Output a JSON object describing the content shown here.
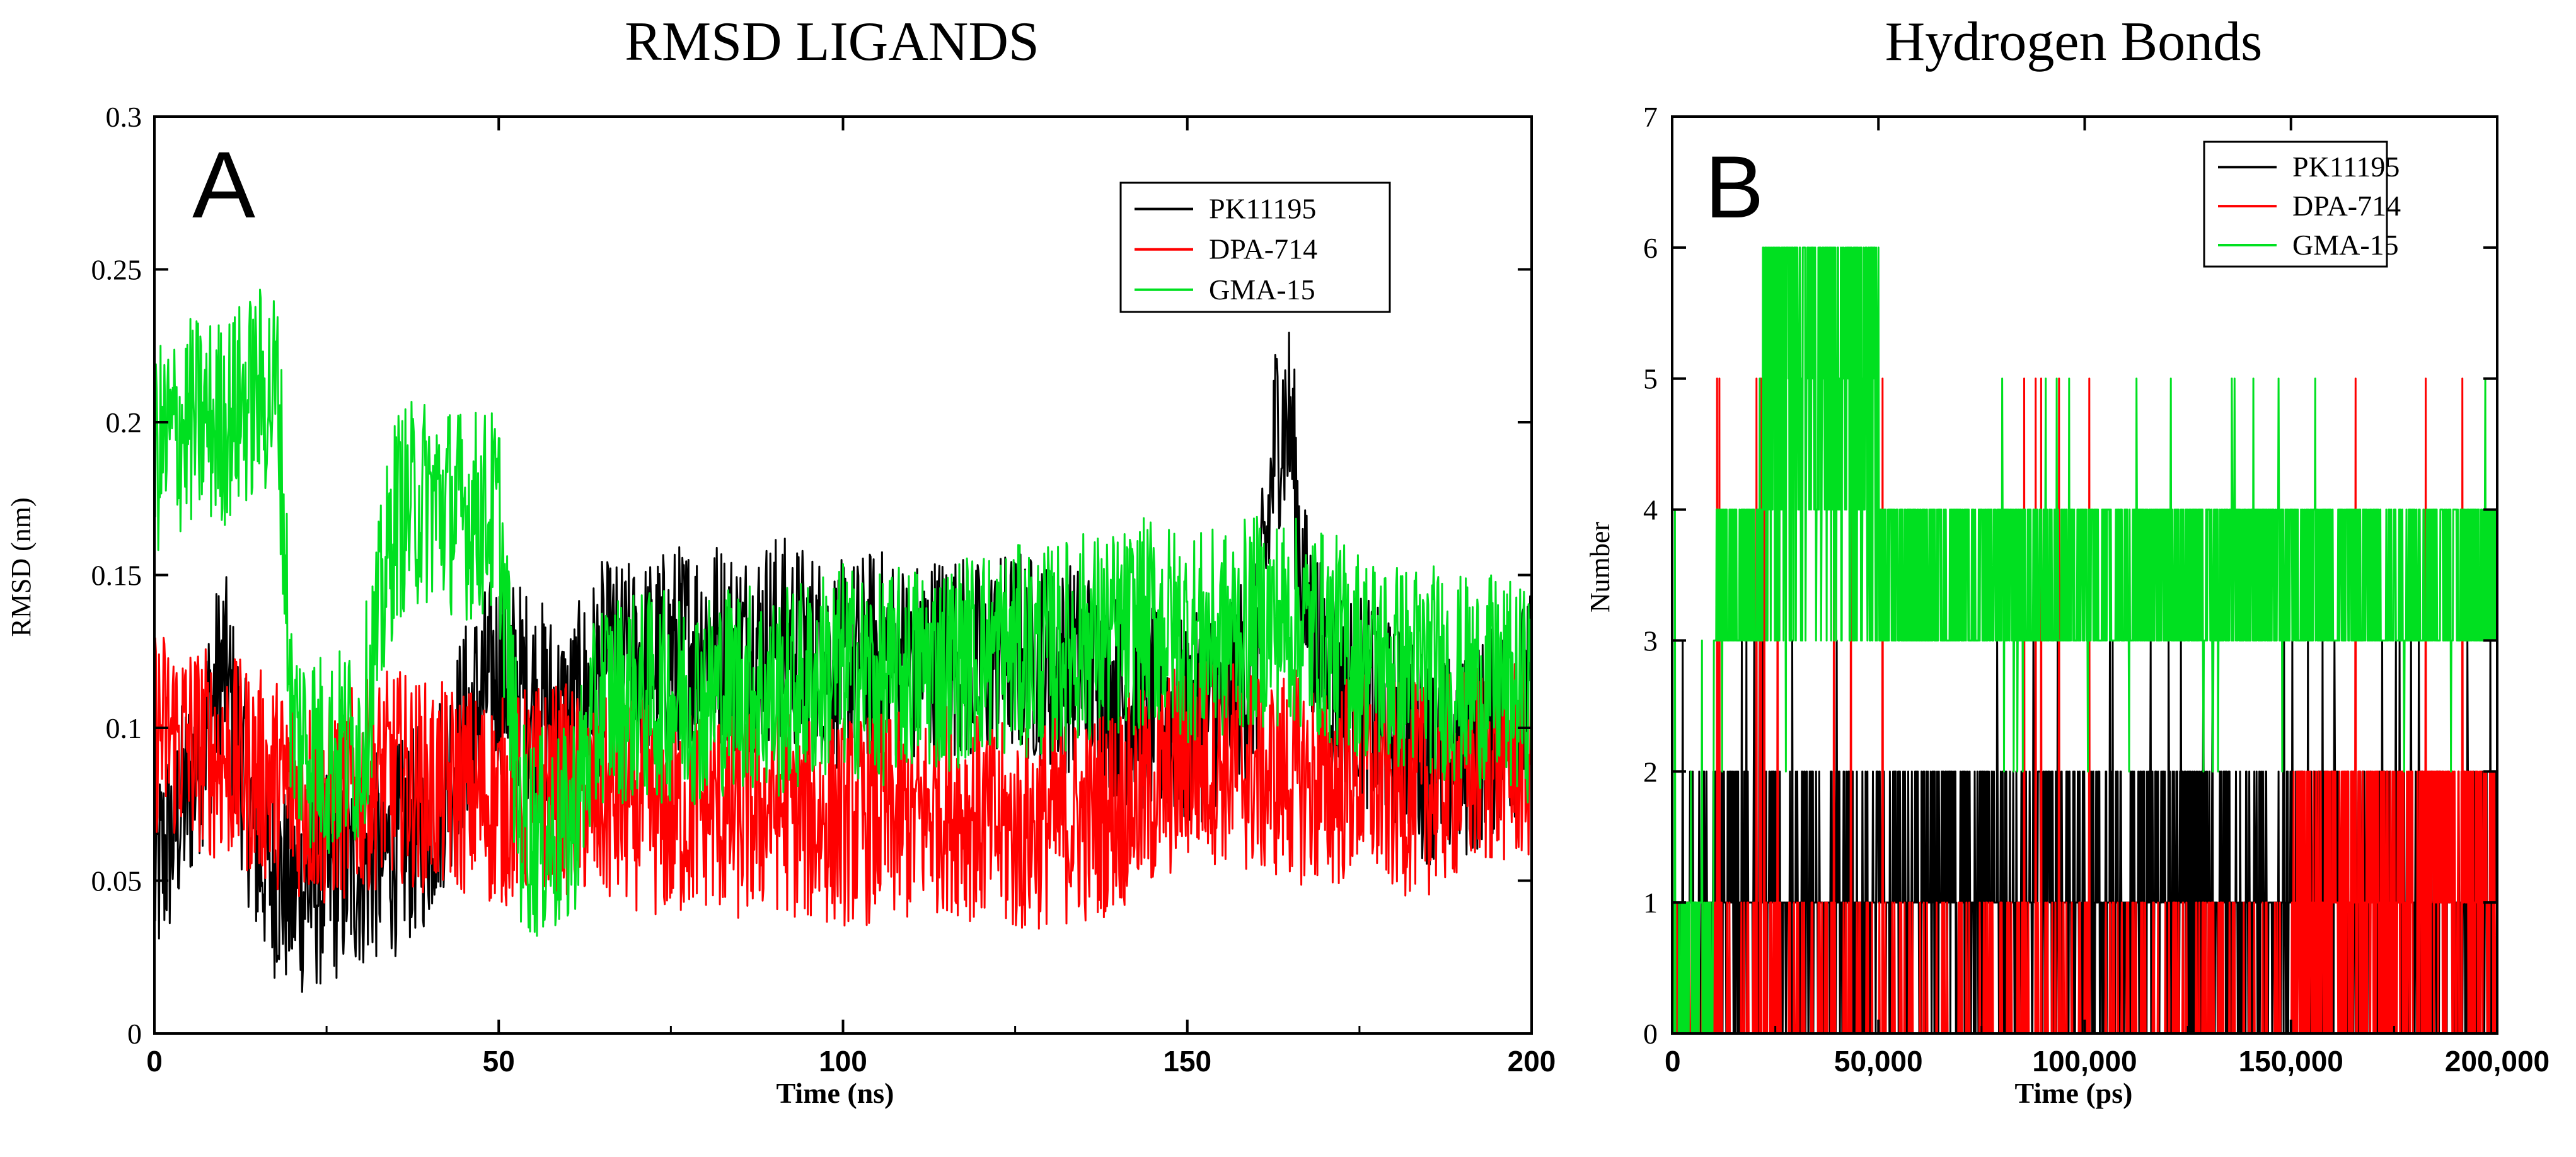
{
  "figure": {
    "colors": {
      "PK11195": "#000000",
      "DPA-714": "#ff0000",
      "GMA-15": "#00e020",
      "background": "#ffffff"
    }
  },
  "chart_data": [
    {
      "type": "line",
      "panel_label": "A",
      "title": "RMSD LIGANDS",
      "xlabel": "Time (ns)",
      "ylabel": "RMSD (nm)",
      "xlim": [
        0,
        200
      ],
      "ylim": [
        0,
        0.3
      ],
      "x_ticks": [
        0,
        50,
        100,
        150,
        200
      ],
      "x_tick_labels": [
        "0",
        "50",
        "100",
        "150",
        "200"
      ],
      "y_ticks": [
        0,
        0.05,
        0.1,
        0.15,
        0.2,
        0.25,
        0.3
      ],
      "y_tick_labels": [
        "0",
        "0.05",
        "0.1",
        "0.15",
        "0.2",
        "0.25",
        "0.3"
      ],
      "legend": {
        "position": "top-right",
        "entries": [
          "PK11195",
          "DPA-714",
          "GMA-15"
        ]
      },
      "series": [
        {
          "name": "PK11195",
          "color": "#000000",
          "x": [
            0,
            5,
            10,
            15,
            20,
            25,
            30,
            35,
            40,
            45,
            50,
            55,
            60,
            65,
            70,
            75,
            80,
            85,
            90,
            95,
            100,
            105,
            110,
            115,
            120,
            125,
            130,
            135,
            140,
            145,
            150,
            155,
            160,
            163,
            165,
            167,
            170,
            175,
            180,
            185,
            190,
            195,
            200
          ],
          "y": [
            0.05,
            0.08,
            0.12,
            0.06,
            0.045,
            0.05,
            0.055,
            0.06,
            0.07,
            0.1,
            0.12,
            0.11,
            0.1,
            0.12,
            0.12,
            0.125,
            0.13,
            0.125,
            0.13,
            0.125,
            0.12,
            0.125,
            0.12,
            0.125,
            0.12,
            0.125,
            0.12,
            0.12,
            0.11,
            0.105,
            0.1,
            0.11,
            0.12,
            0.2,
            0.2,
            0.14,
            0.12,
            0.11,
            0.1,
            0.09,
            0.09,
            0.1,
            0.11
          ]
        },
        {
          "name": "DPA-714",
          "color": "#ff0000",
          "x": [
            0,
            5,
            10,
            15,
            20,
            25,
            30,
            35,
            40,
            45,
            50,
            55,
            60,
            65,
            70,
            75,
            80,
            85,
            90,
            95,
            100,
            105,
            110,
            115,
            120,
            125,
            130,
            135,
            140,
            145,
            150,
            155,
            160,
            165,
            170,
            175,
            180,
            185,
            190,
            195,
            200
          ],
          "y": [
            0.1,
            0.095,
            0.09,
            0.085,
            0.08,
            0.075,
            0.08,
            0.085,
            0.08,
            0.08,
            0.075,
            0.08,
            0.08,
            0.075,
            0.075,
            0.07,
            0.075,
            0.07,
            0.075,
            0.07,
            0.07,
            0.07,
            0.07,
            0.075,
            0.07,
            0.065,
            0.07,
            0.07,
            0.075,
            0.08,
            0.09,
            0.09,
            0.085,
            0.085,
            0.08,
            0.085,
            0.08,
            0.08,
            0.085,
            0.09,
            0.09
          ]
        },
        {
          "name": "GMA-15",
          "color": "#00e020",
          "x": [
            0,
            5,
            10,
            15,
            18,
            20,
            25,
            30,
            35,
            40,
            45,
            50,
            53,
            55,
            60,
            65,
            70,
            75,
            80,
            85,
            90,
            95,
            100,
            105,
            110,
            115,
            120,
            125,
            130,
            135,
            140,
            145,
            150,
            155,
            160,
            165,
            170,
            175,
            180,
            185,
            190,
            195,
            200
          ],
          "y": [
            0.19,
            0.2,
            0.2,
            0.21,
            0.21,
            0.1,
            0.09,
            0.095,
            0.17,
            0.175,
            0.17,
            0.17,
            0.07,
            0.065,
            0.065,
            0.11,
            0.11,
            0.11,
            0.11,
            0.115,
            0.11,
            0.115,
            0.12,
            0.115,
            0.12,
            0.12,
            0.125,
            0.125,
            0.125,
            0.13,
            0.13,
            0.135,
            0.13,
            0.13,
            0.135,
            0.135,
            0.13,
            0.125,
            0.12,
            0.12,
            0.115,
            0.115,
            0.11
          ]
        }
      ]
    },
    {
      "type": "line",
      "panel_label": "B",
      "title": "Hydrogen Bonds",
      "xlabel": "Time (ps)",
      "ylabel": "Number",
      "xlim": [
        0,
        200000
      ],
      "ylim": [
        0,
        7
      ],
      "x_ticks": [
        0,
        50000,
        100000,
        150000,
        200000
      ],
      "x_tick_labels": [
        "0",
        "50,000",
        "100,000",
        "150,000",
        "200,000"
      ],
      "y_ticks": [
        0,
        1,
        2,
        3,
        4,
        5,
        6,
        7
      ],
      "y_tick_labels": [
        "0",
        "1",
        "2",
        "3",
        "4",
        "5",
        "6",
        "7"
      ],
      "legend": {
        "position": "top-right",
        "entries": [
          "PK11195",
          "DPA-714",
          "GMA-15"
        ]
      },
      "series": [
        {
          "name": "PK11195",
          "color": "#000000",
          "x": [
            0,
            10000,
            20000,
            30000,
            40000,
            50000,
            60000,
            70000,
            80000,
            90000,
            100000,
            110000,
            120000,
            130000,
            140000,
            150000,
            160000,
            170000,
            180000,
            190000,
            200000
          ],
          "y": [
            1,
            1,
            1,
            1,
            1,
            1,
            1,
            1,
            1,
            1,
            1,
            1,
            1,
            1,
            0,
            1,
            1,
            1,
            1,
            1,
            1
          ]
        },
        {
          "name": "DPA-714",
          "color": "#ff0000",
          "x": [
            0,
            10000,
            20000,
            30000,
            40000,
            50000,
            60000,
            70000,
            80000,
            90000,
            100000,
            110000,
            120000,
            130000,
            140000,
            150000,
            160000,
            170000,
            180000,
            190000,
            200000
          ],
          "y": [
            0,
            0,
            0,
            0,
            0,
            0,
            0,
            0,
            0,
            0,
            0,
            0,
            0,
            0,
            0,
            0,
            2,
            2,
            2,
            2,
            2
          ]
        },
        {
          "name": "GMA-15",
          "color": "#00e020",
          "x": [
            0,
            10000,
            18000,
            22000,
            30000,
            40000,
            50000,
            55000,
            60000,
            70000,
            80000,
            90000,
            100000,
            110000,
            120000,
            130000,
            140000,
            150000,
            160000,
            170000,
            180000,
            190000,
            200000
          ],
          "y": [
            0,
            0,
            4,
            6,
            6,
            6,
            6,
            4,
            3.5,
            3.5,
            3.5,
            3.5,
            3.5,
            3.5,
            3.5,
            3.5,
            3.5,
            3.5,
            3.5,
            3.5,
            3.5,
            3.5,
            3.5
          ]
        }
      ]
    }
  ]
}
